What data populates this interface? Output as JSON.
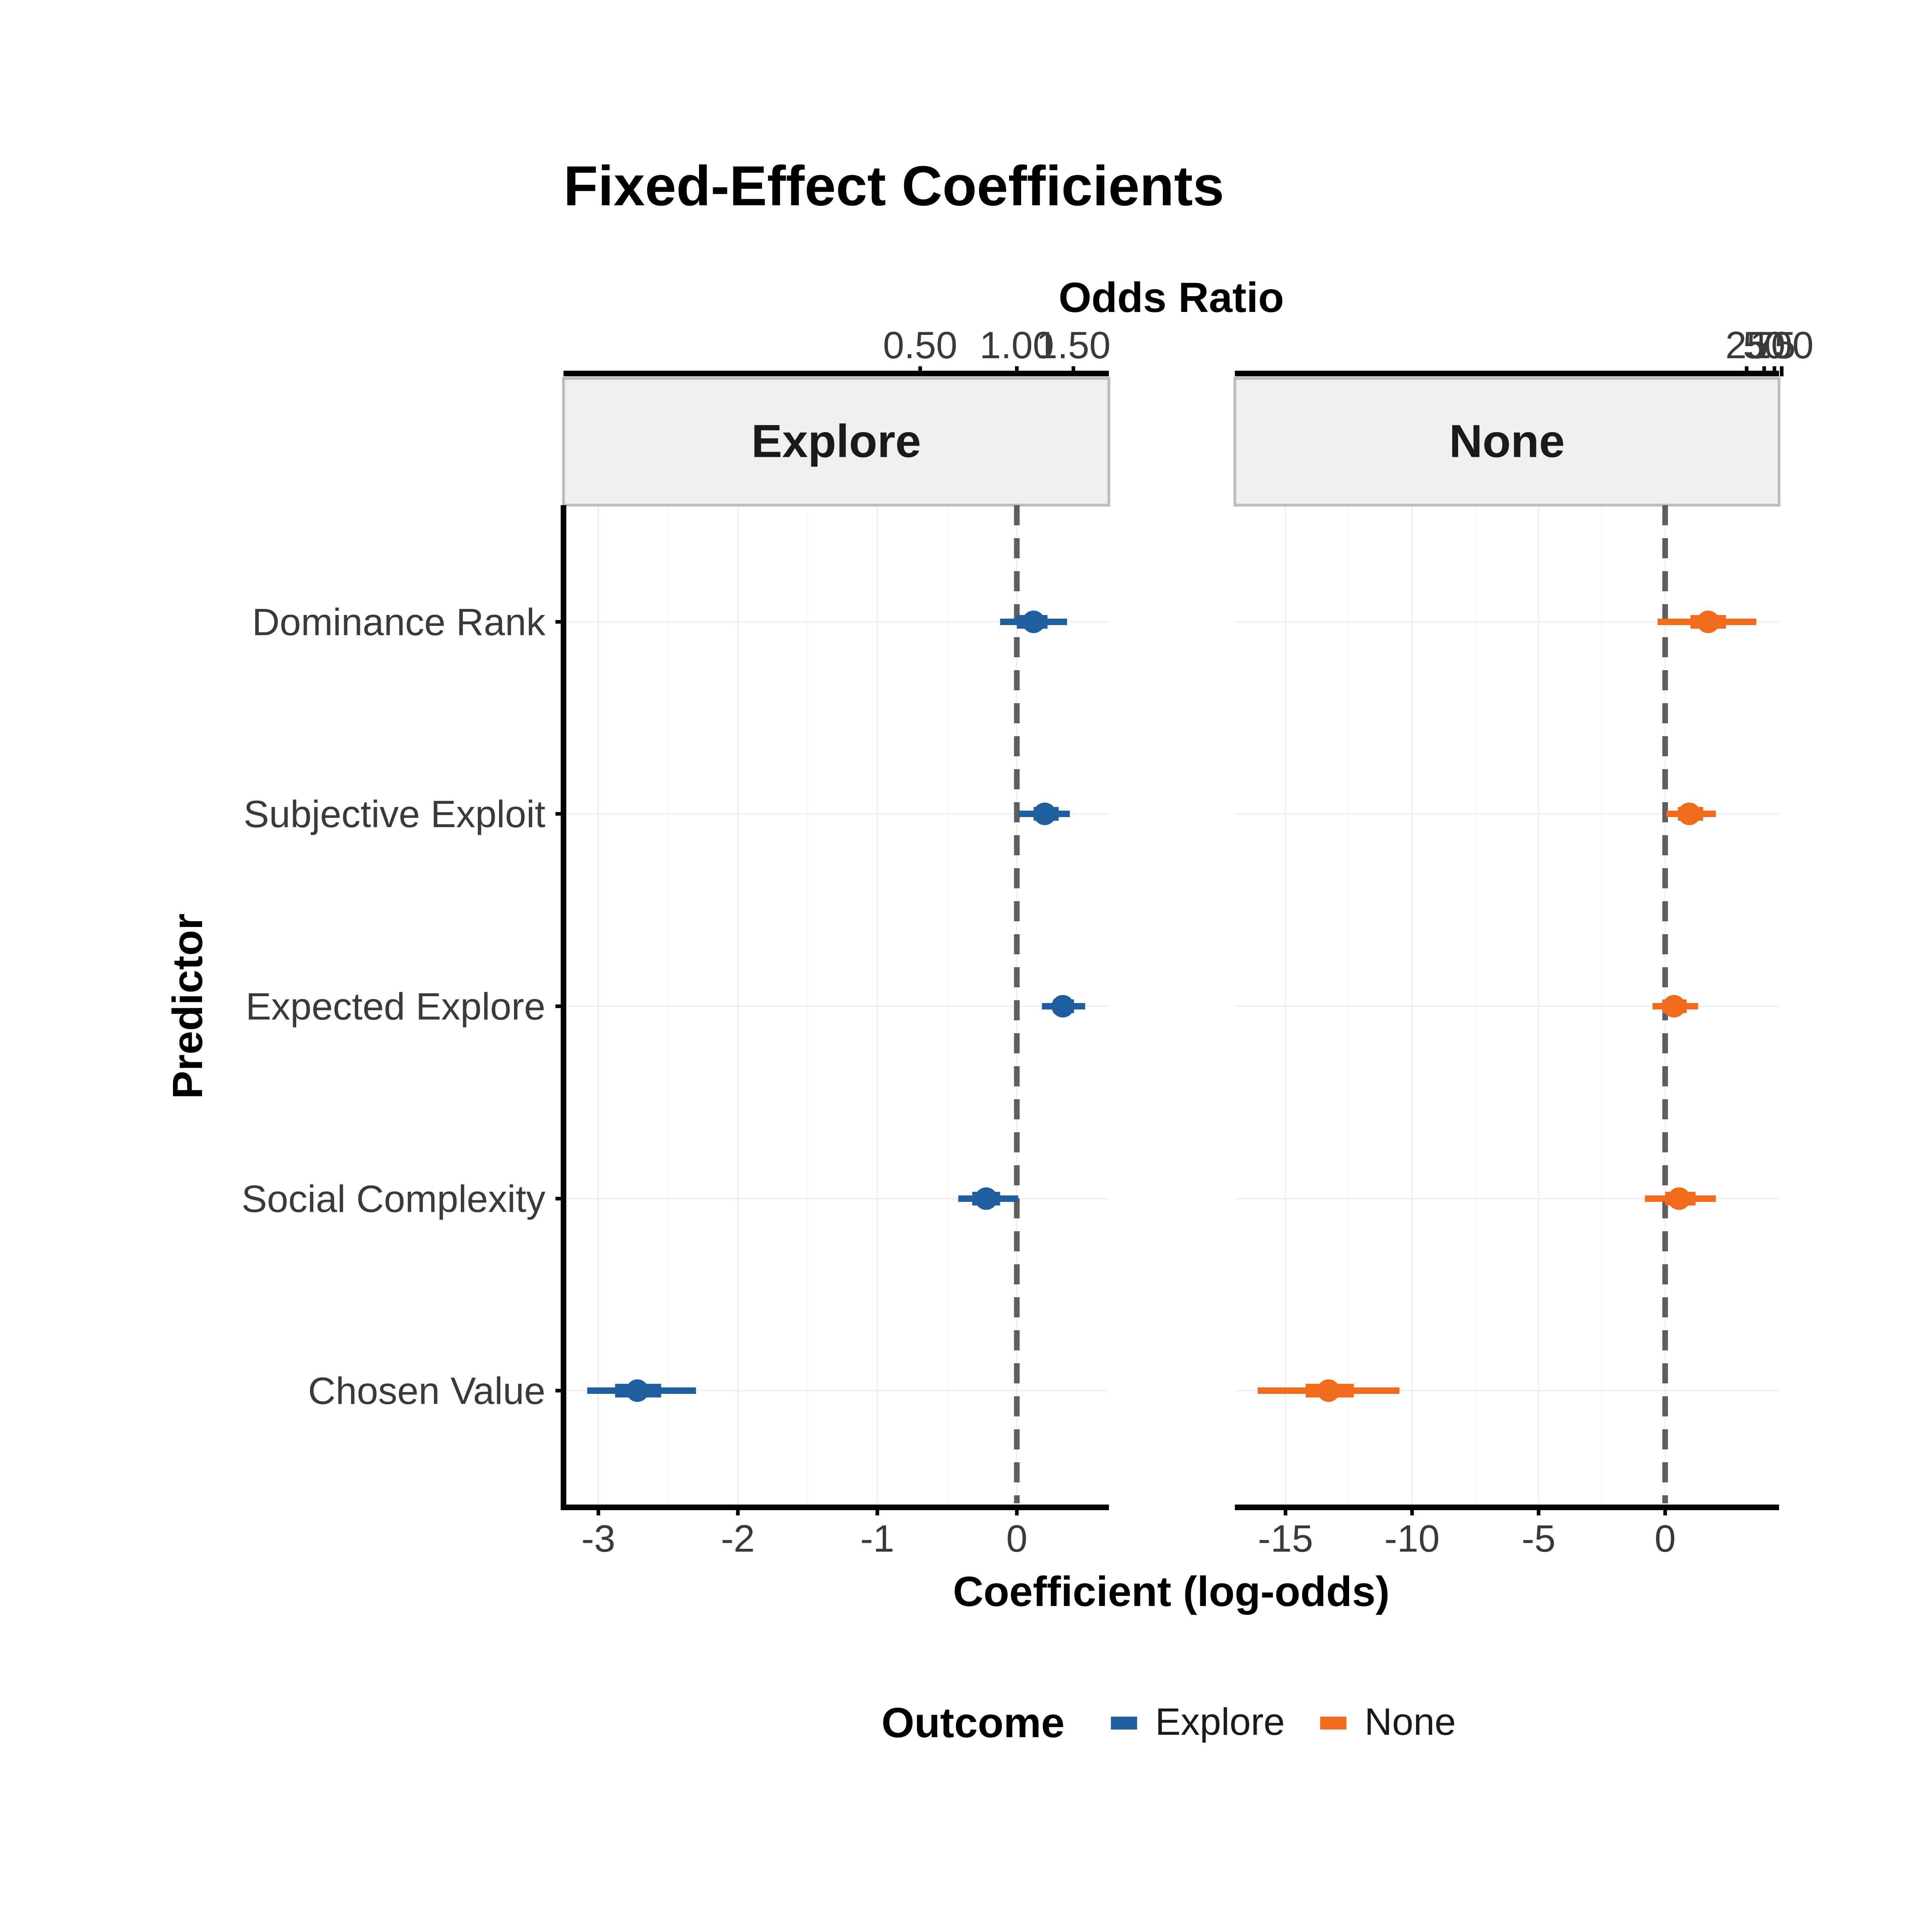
{
  "chart_data": {
    "type": "forest",
    "title": "Fixed-Effect Coefficients",
    "xlabel": "Coefficient (log-odds)",
    "ylabel": "Predictor",
    "secondary_xlabel": "Odds Ratio",
    "categories": [
      "Dominance Rank",
      "Subjective Exploit",
      "Expected Explore",
      "Social Complexity",
      "Chosen Value"
    ],
    "legend": {
      "title": "Outcome",
      "position": "bottom",
      "items": [
        {
          "label": "Explore",
          "color": "#1f5fa0"
        },
        {
          "label": "None",
          "color": "#f26b1d"
        }
      ]
    },
    "reference_line": 0,
    "panels": [
      {
        "strip": "Explore",
        "color": "#1f5fa0",
        "xlim": [
          -3.25,
          0.66
        ],
        "xticks": [
          -3,
          -2,
          -1,
          0
        ],
        "xtick_labels": [
          "-3",
          "-2",
          "-1",
          "0"
        ],
        "or_ticks": [
          0.5,
          1.0,
          1.5
        ],
        "or_tick_labels": [
          "0.50",
          "1.00",
          "1.50"
        ],
        "points": [
          {
            "predictor": "Dominance Rank",
            "estimate": 0.12,
            "inner": [
              0.0,
              0.22
            ],
            "outer": [
              -0.12,
              0.36
            ]
          },
          {
            "predictor": "Subjective Exploit",
            "estimate": 0.2,
            "inner": [
              0.12,
              0.3
            ],
            "outer": [
              0.01,
              0.38
            ]
          },
          {
            "predictor": "Expected Explore",
            "estimate": 0.33,
            "inner": [
              0.26,
              0.41
            ],
            "outer": [
              0.18,
              0.49
            ]
          },
          {
            "predictor": "Social Complexity",
            "estimate": -0.22,
            "inner": [
              -0.32,
              -0.12
            ],
            "outer": [
              -0.42,
              0.01
            ]
          },
          {
            "predictor": "Chosen Value",
            "estimate": -2.72,
            "inner": [
              -2.88,
              -2.55
            ],
            "outer": [
              -3.08,
              -2.3
            ]
          }
        ]
      },
      {
        "strip": "None",
        "color": "#f26b1d",
        "xlim": [
          -17.0,
          4.5
        ],
        "xticks": [
          -15,
          -10,
          -5,
          0
        ],
        "xtick_labels": [
          "-15",
          "-10",
          "-5",
          "0"
        ],
        "or_ticks": [
          25,
          50,
          75,
          100
        ],
        "or_tick_labels": [
          "25",
          "50",
          "75",
          "100"
        ],
        "or_label_text": "2550100",
        "points": [
          {
            "predictor": "Dominance Rank",
            "estimate": 1.7,
            "inner": [
              1.0,
              2.4
            ],
            "outer": [
              -0.3,
              3.6
            ]
          },
          {
            "predictor": "Subjective Exploit",
            "estimate": 0.95,
            "inner": [
              0.5,
              1.5
            ],
            "outer": [
              0.05,
              2.0
            ]
          },
          {
            "predictor": "Expected Explore",
            "estimate": 0.35,
            "inner": [
              -0.1,
              0.85
            ],
            "outer": [
              -0.5,
              1.3
            ]
          },
          {
            "predictor": "Social Complexity",
            "estimate": 0.55,
            "inner": [
              0.0,
              1.2
            ],
            "outer": [
              -0.8,
              2.0
            ]
          },
          {
            "predictor": "Chosen Value",
            "estimate": -13.3,
            "inner": [
              -14.2,
              -12.3
            ],
            "outer": [
              -16.1,
              -10.5
            ]
          }
        ]
      }
    ]
  }
}
